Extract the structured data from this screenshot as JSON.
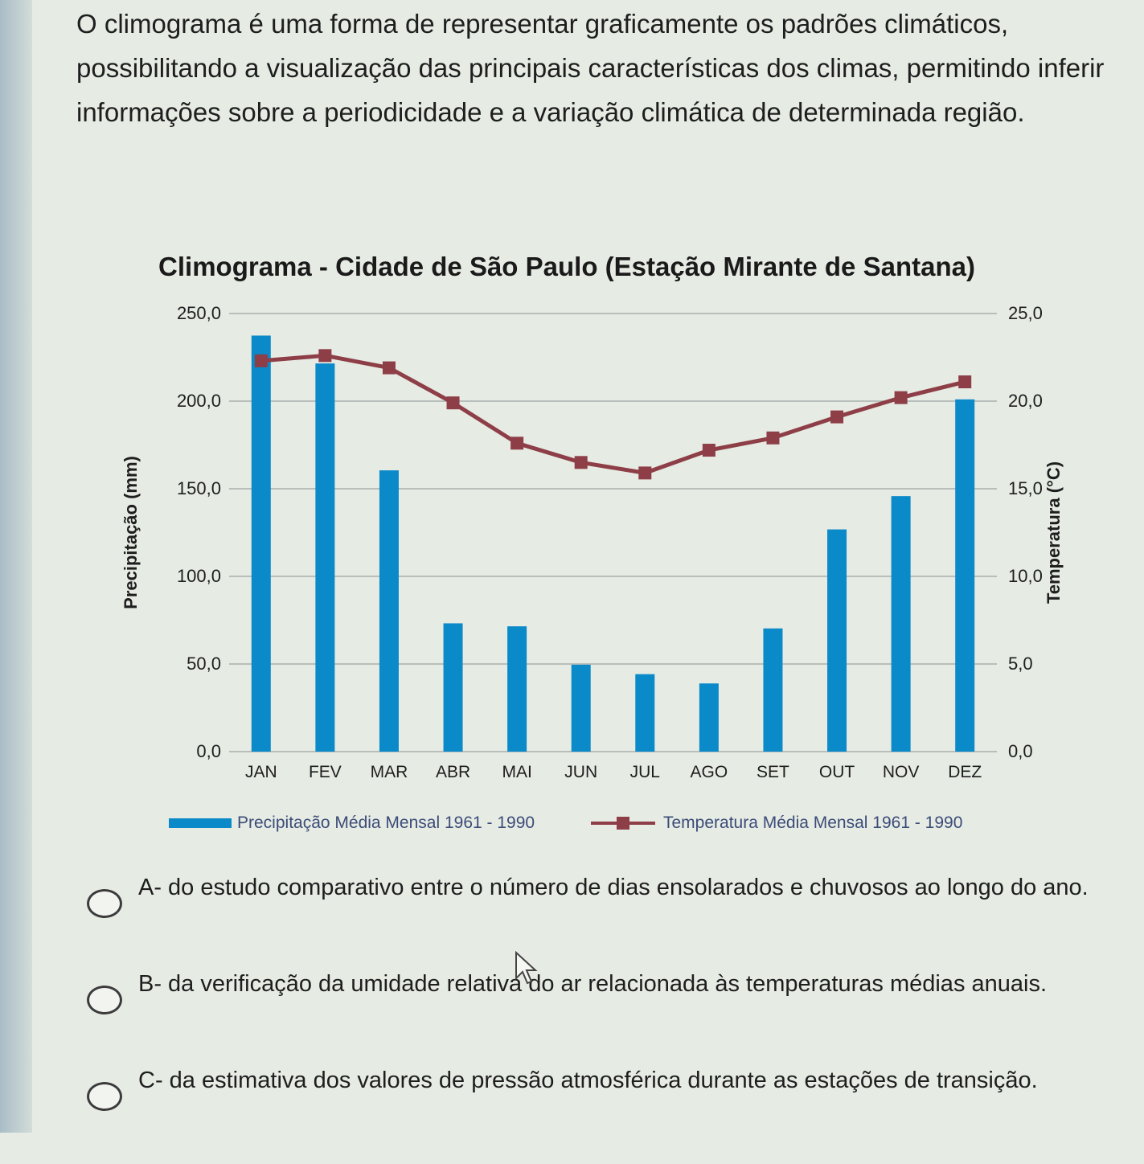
{
  "intro_text": "O climograma é uma forma de representar graficamente os padrões climáticos, possibilitando a visualização das principais características dos climas, permitindo inferir informações sobre a periodicidade e a variação climática de determinada região.",
  "chart_data": {
    "type": "bar+line",
    "title": "Climograma - Cidade de São Paulo (Estação Mirante de Santana)",
    "categories": [
      "JAN",
      "FEV",
      "MAR",
      "ABR",
      "MAI",
      "JUN",
      "JUL",
      "AGO",
      "SET",
      "OUT",
      "NOV",
      "DEZ"
    ],
    "ylabel_left": "Precipitação (mm)",
    "ylabel_right": "Temperatura (°C)",
    "ylim_left": [
      0,
      250
    ],
    "ylim_right": [
      0,
      25
    ],
    "yticks_left": [
      "0,0",
      "50,0",
      "100,0",
      "150,0",
      "200,0",
      "250,0"
    ],
    "yticks_right": [
      "0,0",
      "5,0",
      "10,0",
      "15,0",
      "20,0",
      "25,0"
    ],
    "grid": true,
    "legend_position": "bottom",
    "series": [
      {
        "name": "Precipitação Média Mensal 1961 - 1990",
        "kind": "bar",
        "axis": "left",
        "color": "#0a8ac8",
        "values": [
          237.4,
          221.5,
          160.5,
          73.2,
          71.5,
          49.6,
          44.2,
          38.9,
          70.3,
          126.8,
          145.8,
          201.0
        ]
      },
      {
        "name": "Temperatura Média Mensal 1961 - 1990",
        "kind": "line",
        "axis": "right",
        "color": "#8e3e47",
        "values": [
          22.3,
          22.6,
          21.9,
          19.9,
          17.6,
          16.5,
          15.9,
          17.2,
          17.9,
          19.1,
          20.2,
          21.1
        ]
      }
    ]
  },
  "options": [
    {
      "id": "A",
      "text": "A- do estudo comparativo entre o número de dias ensolarados e chuvosos ao longo do ano."
    },
    {
      "id": "B",
      "text": "B- da verificação da umidade relativa do ar relacionada às temperaturas médias anuais."
    },
    {
      "id": "C",
      "text": "C- da estimativa dos valores de pressão atmosférica durante as estações de transição."
    }
  ]
}
